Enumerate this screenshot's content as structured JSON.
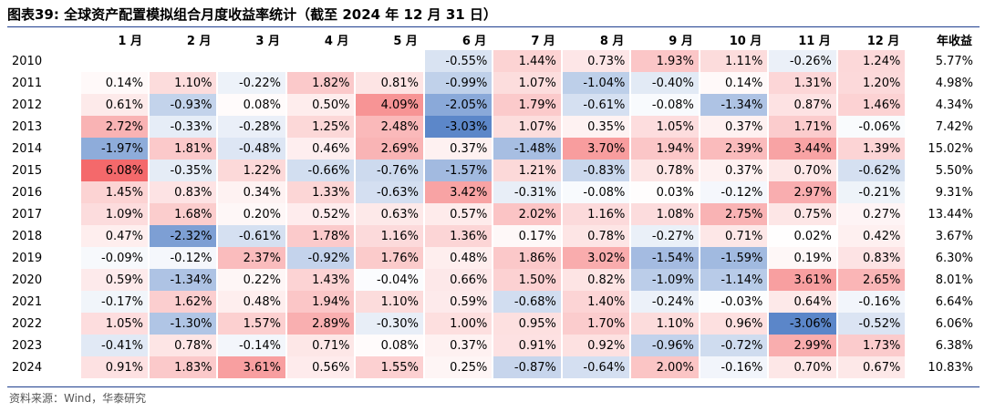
{
  "title": "图表39:  全球资产配置模拟组合月度收益率统计（截至 2024 年 12 月 31 日）",
  "source": "资料来源：Wind，华泰研究",
  "colors": {
    "positive": "#f4696b",
    "negative": "#5b86c9",
    "neutral": "#ffffff"
  },
  "chart_data": {
    "type": "heatmap",
    "title": "全球资产配置模拟组合月度收益率统计（截至 2024 年 12 月 31 日）",
    "columns": [
      "1 月",
      "2 月",
      "3 月",
      "4 月",
      "5 月",
      "6 月",
      "7 月",
      "8 月",
      "9 月",
      "10 月",
      "11 月",
      "12 月",
      "年收益"
    ],
    "unit": "%",
    "rows": [
      {
        "year": "2010",
        "months": [
          null,
          null,
          null,
          null,
          null,
          "-0.55%",
          "1.44%",
          "0.73%",
          "1.93%",
          "1.11%",
          "-0.26%",
          "1.24%"
        ],
        "annual": "5.77%"
      },
      {
        "year": "2011",
        "months": [
          "0.14%",
          "1.10%",
          "-0.22%",
          "1.82%",
          "0.81%",
          "-0.99%",
          "1.07%",
          "-1.04%",
          "-0.40%",
          "0.14%",
          "1.31%",
          "1.20%"
        ],
        "annual": "4.98%"
      },
      {
        "year": "2012",
        "months": [
          "0.61%",
          "-0.93%",
          "0.08%",
          "0.50%",
          "4.09%",
          "-2.05%",
          "1.79%",
          "-0.61%",
          "-0.08%",
          "-1.34%",
          "0.87%",
          "1.46%"
        ],
        "annual": "4.34%"
      },
      {
        "year": "2013",
        "months": [
          "2.72%",
          "-0.33%",
          "-0.28%",
          "1.25%",
          "2.48%",
          "-3.03%",
          "1.07%",
          "0.35%",
          "1.05%",
          "0.37%",
          "1.71%",
          "-0.06%"
        ],
        "annual": "7.42%"
      },
      {
        "year": "2014",
        "months": [
          "-1.97%",
          "1.81%",
          "-0.48%",
          "0.46%",
          "2.69%",
          "0.37%",
          "-1.48%",
          "3.70%",
          "1.94%",
          "2.39%",
          "3.44%",
          "1.39%"
        ],
        "annual": "15.02%"
      },
      {
        "year": "2015",
        "months": [
          "6.08%",
          "-0.35%",
          "1.22%",
          "-0.66%",
          "-0.76%",
          "-1.57%",
          "1.21%",
          "-0.83%",
          "0.78%",
          "0.37%",
          "0.70%",
          "-0.62%"
        ],
        "annual": "5.50%"
      },
      {
        "year": "2016",
        "months": [
          "1.45%",
          "0.83%",
          "0.34%",
          "1.33%",
          "-0.63%",
          "3.42%",
          "-0.31%",
          "-0.08%",
          "0.03%",
          "-0.12%",
          "2.97%",
          "-0.21%"
        ],
        "annual": "9.31%"
      },
      {
        "year": "2017",
        "months": [
          "1.09%",
          "1.68%",
          "0.20%",
          "0.52%",
          "0.63%",
          "0.57%",
          "2.02%",
          "1.16%",
          "1.08%",
          "2.75%",
          "0.75%",
          "0.27%"
        ],
        "annual": "13.44%"
      },
      {
        "year": "2018",
        "months": [
          "0.47%",
          "-2.32%",
          "-0.61%",
          "1.78%",
          "1.16%",
          "1.36%",
          "0.17%",
          "0.78%",
          "-0.27%",
          "0.71%",
          "0.02%",
          "0.42%"
        ],
        "annual": "3.67%"
      },
      {
        "year": "2019",
        "months": [
          "-0.09%",
          "-0.12%",
          "2.37%",
          "-0.92%",
          "1.76%",
          "0.48%",
          "1.86%",
          "3.02%",
          "-1.54%",
          "-1.59%",
          "0.19%",
          "0.83%"
        ],
        "annual": "6.30%"
      },
      {
        "year": "2020",
        "months": [
          "0.59%",
          "-1.34%",
          "0.22%",
          "1.43%",
          "-0.04%",
          "0.66%",
          "1.50%",
          "0.82%",
          "-1.09%",
          "-1.14%",
          "3.61%",
          "2.65%"
        ],
        "annual": "8.01%"
      },
      {
        "year": "2021",
        "months": [
          "-0.17%",
          "1.62%",
          "0.48%",
          "1.94%",
          "1.10%",
          "0.59%",
          "-0.68%",
          "1.40%",
          "-0.24%",
          "-0.03%",
          "0.64%",
          "-0.16%"
        ],
        "annual": "6.64%"
      },
      {
        "year": "2022",
        "months": [
          "1.05%",
          "-1.30%",
          "1.57%",
          "2.89%",
          "-0.30%",
          "1.00%",
          "0.95%",
          "1.70%",
          "1.10%",
          "0.96%",
          "-3.06%",
          "-0.52%"
        ],
        "annual": "6.06%"
      },
      {
        "year": "2023",
        "months": [
          "-0.41%",
          "0.78%",
          "-0.14%",
          "0.71%",
          "0.08%",
          "0.37%",
          "0.91%",
          "0.92%",
          "-0.96%",
          "-0.72%",
          "2.99%",
          "1.73%"
        ],
        "annual": "6.38%"
      },
      {
        "year": "2024",
        "months": [
          "0.91%",
          "1.83%",
          "3.61%",
          "0.56%",
          "1.55%",
          "0.25%",
          "-0.87%",
          "-0.64%",
          "2.00%",
          "-0.16%",
          "0.70%",
          "0.67%"
        ],
        "annual": "10.83%"
      }
    ]
  }
}
